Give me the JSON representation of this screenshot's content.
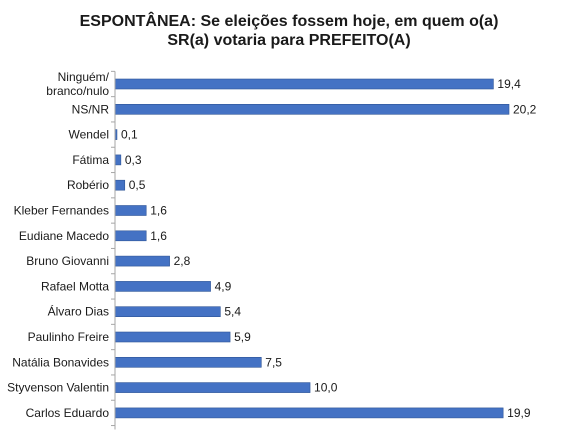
{
  "title_line1": "ESPONTÂNEA: Se eleições fossem hoje, em quem o(a)",
  "title_line2": "SR(a) votaria para PREFEITO(A)",
  "colors": {
    "bar": "#4472c4",
    "bar_edge": "#2f5597",
    "axis": "#a6a6a6"
  },
  "chart_data": {
    "type": "bar",
    "orientation": "horizontal",
    "title": "ESPONTÂNEA: Se eleições fossem hoje, em quem o(a) SR(a) votaria para PREFEITO(A)",
    "categories": [
      [
        "Ninguém/",
        "branco/nulo"
      ],
      [
        "NS/NR"
      ],
      [
        "Wendel"
      ],
      [
        "Fátima"
      ],
      [
        "Robério"
      ],
      [
        "Kleber Fernandes"
      ],
      [
        "Eudiane Macedo"
      ],
      [
        "Bruno Giovanni"
      ],
      [
        "Rafael Motta"
      ],
      [
        "Álvaro Dias"
      ],
      [
        "Paulinho Freire"
      ],
      [
        "Natália Bonavides"
      ],
      [
        "Styvenson Valentin"
      ],
      [
        "Carlos Eduardo"
      ]
    ],
    "values": [
      19.4,
      20.2,
      0.1,
      0.3,
      0.5,
      1.6,
      1.6,
      2.8,
      4.9,
      5.4,
      5.9,
      7.5,
      10.0,
      19.9
    ],
    "value_labels": [
      "19,4",
      "20,2",
      "0,1",
      "0,3",
      "0,5",
      "1,6",
      "1,6",
      "2,8",
      "4,9",
      "5,4",
      "5,9",
      "7,5",
      "10,0",
      "19,9"
    ],
    "xlim": [
      0,
      22
    ],
    "grid": false,
    "legend": "none"
  }
}
